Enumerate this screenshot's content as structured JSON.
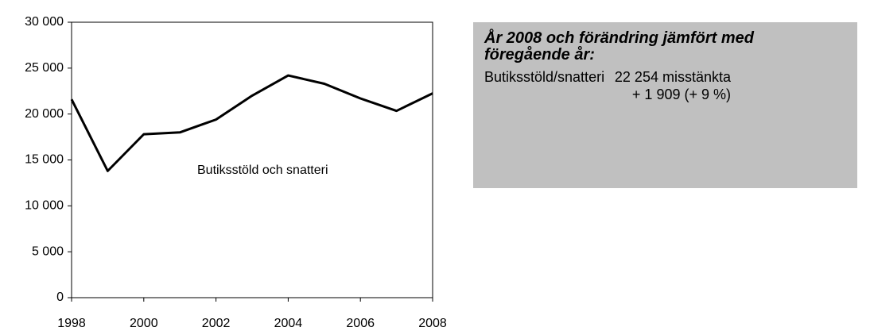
{
  "chart_data": {
    "type": "line",
    "x": [
      1998,
      1999,
      2000,
      2001,
      2002,
      2003,
      2004,
      2005,
      2006,
      2007,
      2008
    ],
    "series": [
      {
        "name": "Butiksstöld och snatteri",
        "color": "#000000",
        "values": [
          21600,
          13800,
          17800,
          18000,
          19400,
          22000,
          24200,
          23300,
          21700,
          20345,
          22254
        ]
      }
    ],
    "xlim": [
      1998,
      2008
    ],
    "xticks": [
      1998,
      2000,
      2002,
      2004,
      2006,
      2008
    ],
    "ylim": [
      0,
      30000
    ],
    "yticks": [
      0,
      {
        "value": 5000,
        "label": "5 000"
      },
      {
        "value": 10000,
        "label": "10 000"
      },
      {
        "value": 15000,
        "label": "15 000"
      },
      {
        "value": 20000,
        "label": "20 000"
      },
      {
        "value": 25000,
        "label": "25 000"
      },
      {
        "value": 30000,
        "label": "30 000"
      }
    ],
    "grid": false
  },
  "info_box": {
    "title": "År 2008 och förändring jämfört med föregående år:",
    "rows": [
      [
        "Butiksstöld/snatteri",
        "22 254 misstänkta"
      ],
      [
        "",
        "+ 1 909 (+ 9 %)"
      ]
    ]
  }
}
